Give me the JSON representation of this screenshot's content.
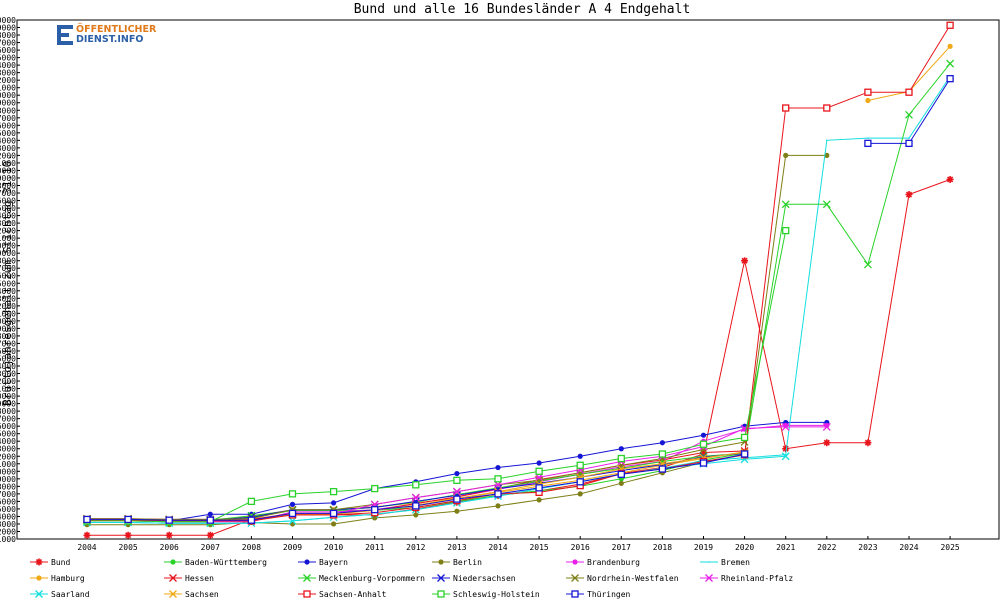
{
  "logo": {
    "line1": "ÖFFENTLICHER",
    "line2": "DIENST.INFO"
  },
  "chart_data": {
    "type": "line",
    "title": "Bund und alle 16 Bundesländer A 4 Endgehalt",
    "xlabel": "",
    "ylabel": "Bruttojahresgehalt zum Stichtag 31.10.",
    "x": [
      2004,
      2005,
      2006,
      2007,
      2008,
      2009,
      2010,
      2011,
      2012,
      2013,
      2014,
      2015,
      2016,
      2017,
      2018,
      2019,
      2020,
      2021,
      2022,
      2023,
      2024,
      2025
    ],
    "ylim": [
      21000,
      90000
    ],
    "ytick_step": 1000,
    "grid": false,
    "legend_position": "bottom",
    "series": [
      {
        "name": "Bund",
        "color": "#e8141b",
        "marker": "star",
        "values": [
          21500,
          21500,
          21500,
          21500,
          23600,
          24200,
          24200,
          24200,
          25000,
          25900,
          26800,
          27400,
          28300,
          29700,
          30500,
          32300,
          58000,
          33000,
          33800,
          33800,
          66800,
          68800
        ]
      },
      {
        "name": "Baden-Württemberg",
        "color": "#28d228",
        "marker": "dot",
        "values": [
          23400,
          23400,
          23300,
          23300,
          23800,
          24800,
          24800,
          24800,
          25200,
          26000,
          26800,
          27400,
          28000,
          29000,
          30100,
          31500,
          32400,
          null,
          null,
          null,
          null,
          null
        ]
      },
      {
        "name": "Bayern",
        "color": "#1515d6",
        "marker": "dot",
        "values": [
          23500,
          23500,
          23400,
          24300,
          24300,
          25600,
          25800,
          27700,
          28600,
          29700,
          30500,
          31100,
          32000,
          33000,
          33800,
          34800,
          36000,
          36500,
          36500,
          null,
          null,
          null
        ]
      },
      {
        "name": "Berlin",
        "color": "#7f7f17",
        "marker": "dot",
        "values": [
          22900,
          22900,
          22900,
          22900,
          23200,
          23000,
          23000,
          23800,
          24200,
          24700,
          25400,
          26200,
          27000,
          28400,
          29800,
          31200,
          32200,
          72000,
          72000,
          null,
          null,
          null
        ]
      },
      {
        "name": "Brandenburg",
        "color": "#e81fe8",
        "marker": "dot",
        "values": [
          23400,
          23400,
          23300,
          23300,
          23300,
          24600,
          24600,
          24900,
          25700,
          26600,
          27600,
          28600,
          29600,
          30600,
          31300,
          34000,
          35600,
          36100,
          36100,
          null,
          null,
          null
        ]
      },
      {
        "name": "Bremen",
        "color": "#12dede",
        "marker": "none",
        "values": [
          23200,
          23200,
          23100,
          23100,
          23100,
          23400,
          23900,
          24300,
          24900,
          25800,
          26700,
          27700,
          28600,
          29600,
          30400,
          31400,
          31800,
          32200,
          74000,
          74300,
          74300,
          82500
        ]
      },
      {
        "name": "Hamburg",
        "color": "#f0a814",
        "marker": "dot",
        "values": [
          23600,
          23600,
          23500,
          23500,
          24000,
          24900,
          24900,
          25300,
          25800,
          26400,
          27200,
          28000,
          28800,
          29800,
          30800,
          31700,
          32600,
          null,
          null,
          79300,
          80500,
          86500
        ]
      },
      {
        "name": "Hessen",
        "color": "#e8141b",
        "marker": "x",
        "values": [
          23700,
          23700,
          23600,
          23600,
          23600,
          24400,
          24400,
          24800,
          25700,
          26600,
          27700,
          28900,
          29800,
          30800,
          31500,
          32500,
          32700,
          null,
          null,
          null,
          null,
          null
        ]
      },
      {
        "name": "Mecklenburg-Vorpommern",
        "color": "#28d228",
        "marker": "x",
        "values": [
          23600,
          23600,
          23500,
          23500,
          24100,
          24800,
          24800,
          25200,
          25900,
          26900,
          27800,
          28700,
          29600,
          30400,
          31300,
          32000,
          32400,
          65500,
          65500,
          57500,
          77400,
          84200
        ]
      },
      {
        "name": "Niedersachsen",
        "color": "#1515d6",
        "marker": "x",
        "values": [
          23600,
          23600,
          23500,
          23500,
          23900,
          24900,
          24900,
          25200,
          26000,
          26800,
          27700,
          28400,
          29200,
          30100,
          30900,
          31900,
          32400,
          null,
          null,
          null,
          null,
          null
        ]
      },
      {
        "name": "Nordrhein-Westfalen",
        "color": "#7f7f17",
        "marker": "x",
        "values": [
          23700,
          23700,
          23600,
          23600,
          23700,
          24900,
          24900,
          25600,
          26500,
          27300,
          28200,
          28800,
          29800,
          30800,
          31700,
          32900,
          33900,
          null,
          null,
          null,
          null,
          null
        ]
      },
      {
        "name": "Rheinland-Pfalz",
        "color": "#e81fe8",
        "marker": "x",
        "values": [
          23500,
          23500,
          23400,
          23400,
          23400,
          24300,
          24300,
          25600,
          26500,
          27300,
          28200,
          29200,
          30200,
          31300,
          32000,
          33300,
          35700,
          35900,
          35900,
          null,
          null,
          null
        ]
      },
      {
        "name": "Saarland",
        "color": "#12dede",
        "marker": "x",
        "values": [
          23200,
          23200,
          23100,
          23100,
          23100,
          23400,
          23900,
          24300,
          24900,
          25800,
          26700,
          27700,
          28600,
          29600,
          30400,
          31000,
          31600,
          32000,
          null,
          null,
          null,
          null
        ]
      },
      {
        "name": "Sachsen",
        "color": "#f0a814",
        "marker": "x",
        "values": [
          23500,
          23500,
          23400,
          23400,
          23400,
          24300,
          24300,
          24800,
          25500,
          26400,
          27300,
          28300,
          29200,
          30300,
          31000,
          31800,
          32500,
          null,
          null,
          null,
          null,
          null
        ]
      },
      {
        "name": "Sachsen-Anhalt",
        "color": "#e8141b",
        "marker": "square",
        "values": [
          23500,
          23500,
          23400,
          23400,
          23400,
          24200,
          24200,
          24500,
          25200,
          26100,
          27000,
          27200,
          28100,
          29700,
          30300,
          31300,
          32200,
          78300,
          78300,
          80400,
          80400,
          89300
        ]
      },
      {
        "name": "Schleswig-Holstein",
        "color": "#28d228",
        "marker": "square",
        "values": [
          23400,
          23400,
          23300,
          23300,
          26000,
          27000,
          27300,
          27700,
          28200,
          28800,
          29000,
          30000,
          30800,
          31700,
          32300,
          33600,
          34500,
          62000,
          null,
          null,
          null,
          null
        ]
      },
      {
        "name": "Thüringen",
        "color": "#1515d6",
        "marker": "square",
        "values": [
          23600,
          23600,
          23500,
          23500,
          23500,
          24400,
          24400,
          24900,
          25400,
          26300,
          27000,
          27800,
          28600,
          29600,
          30300,
          31100,
          32300,
          null,
          null,
          73600,
          73600,
          82200
        ]
      }
    ]
  }
}
